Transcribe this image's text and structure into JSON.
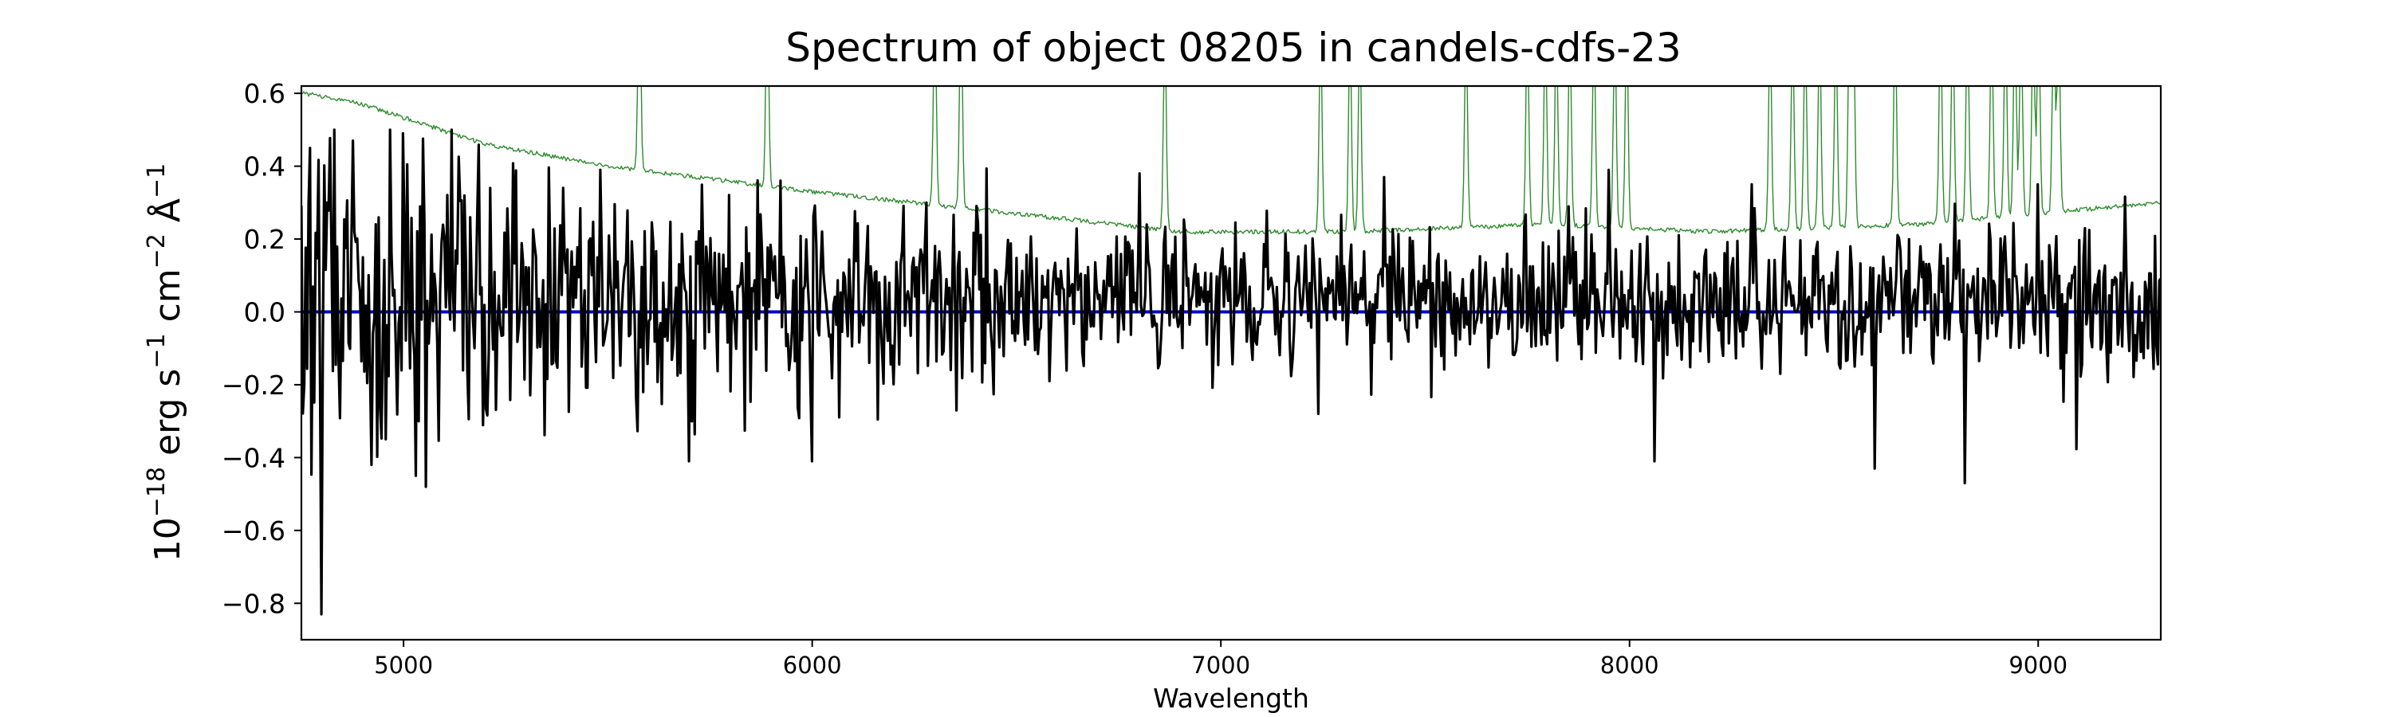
{
  "chart_data": {
    "type": "line",
    "title": "Spectrum of object 08205 in candels-cdfs-23",
    "xlabel": "Wavelength",
    "ylabel_parts": {
      "base": "10",
      "exp1": "−18",
      "mid1": " erg s",
      "exp2": "−1",
      "mid2": " cm",
      "exp3": "−2",
      "mid3": " Å",
      "exp4": "−1"
    },
    "xlim": [
      4750,
      9300
    ],
    "ylim": [
      -0.9,
      0.62
    ],
    "xticks": [
      5000,
      6000,
      7000,
      8000,
      9000
    ],
    "yticks": [
      0.6,
      0.4,
      0.2,
      0.0,
      -0.2,
      -0.4,
      -0.6,
      -0.8
    ],
    "ytick_labels": [
      "0.6",
      "0.4",
      "0.2",
      "0.0",
      "−0.2",
      "−0.4",
      "−0.6",
      "−0.8"
    ],
    "colors": {
      "flux": "#000000",
      "error": "#2e8b2e",
      "zero": "#0000cc"
    },
    "series": [
      {
        "role": "flux",
        "style": "noisy-spectrum",
        "x_range": [
          4750,
          9300
        ],
        "notable_points": [
          {
            "x": 4770,
            "y": 0.45
          },
          {
            "x": 4800,
            "y": -0.83
          },
          {
            "x": 4875,
            "y": 0.47
          },
          {
            "x": 4920,
            "y": -0.42
          },
          {
            "x": 5000,
            "y": 0.49
          },
          {
            "x": 5030,
            "y": -0.45
          },
          {
            "x": 5055,
            "y": -0.48
          },
          {
            "x": 5480,
            "y": 0.39
          },
          {
            "x": 5700,
            "y": -0.41
          },
          {
            "x": 6000,
            "y": -0.41
          },
          {
            "x": 6280,
            "y": 0.3
          },
          {
            "x": 6800,
            "y": 0.38
          },
          {
            "x": 7240,
            "y": -0.28
          },
          {
            "x": 7400,
            "y": 0.37
          },
          {
            "x": 7950,
            "y": 0.39
          },
          {
            "x": 8060,
            "y": -0.41
          },
          {
            "x": 8300,
            "y": 0.35
          },
          {
            "x": 8600,
            "y": -0.43
          },
          {
            "x": 8820,
            "y": -0.47
          },
          {
            "x": 9000,
            "y": 0.35
          }
        ]
      },
      {
        "role": "error",
        "style": "smooth-continuum-with-sky-lines",
        "continuum": [
          [
            4760,
            0.6
          ],
          [
            4900,
            0.57
          ],
          [
            5200,
            0.46
          ],
          [
            5500,
            0.4
          ],
          [
            6000,
            0.33
          ],
          [
            6500,
            0.27
          ],
          [
            6900,
            0.22
          ],
          [
            7300,
            0.22
          ],
          [
            7800,
            0.24
          ],
          [
            8200,
            0.22
          ],
          [
            8700,
            0.24
          ],
          [
            9300,
            0.3
          ]
        ],
        "sky_lines": [
          5577,
          5890,
          6300,
          6364,
          6863,
          7244,
          7316,
          7340,
          7600,
          7750,
          7794,
          7821,
          7854,
          7913,
          7964,
          7993,
          8344,
          8399,
          8430,
          8465,
          8505,
          8538,
          8548,
          8650,
          8761,
          8791,
          8827,
          8886,
          8920,
          8943,
          8958,
          8988,
          9001,
          9038,
          9050
        ]
      },
      {
        "role": "zero",
        "style": "horizontal-line",
        "y": 0.0
      }
    ]
  }
}
